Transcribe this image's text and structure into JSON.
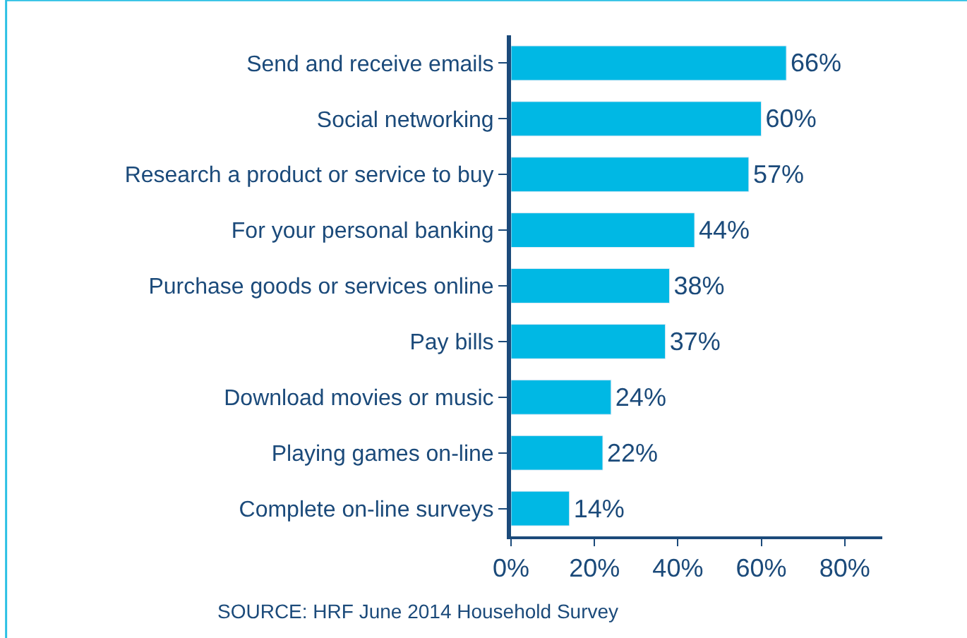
{
  "chart_data": {
    "type": "bar",
    "orientation": "horizontal",
    "categories": [
      "Send and receive emails",
      "Social networking",
      "Research a product or service to buy",
      "For your personal banking",
      "Purchase goods or services online",
      "Pay bills",
      "Download movies or music",
      "Playing games on-line",
      "Complete on-line surveys"
    ],
    "values": [
      66,
      60,
      57,
      44,
      38,
      37,
      24,
      22,
      14
    ],
    "value_labels": [
      "66%",
      "60%",
      "57%",
      "44%",
      "38%",
      "37%",
      "24%",
      "22%",
      "14%"
    ],
    "color": "#00b8e4",
    "xlim": [
      0,
      89
    ],
    "xticks": [
      {
        "value": 0,
        "label": "0%"
      },
      {
        "value": 20,
        "label": "20%"
      },
      {
        "value": 40,
        "label": "40%"
      },
      {
        "value": 60,
        "label": "60%"
      },
      {
        "value": 80,
        "label": "80%"
      }
    ],
    "annotations": [
      "SOURCE: HRF June 2014 Household Survey"
    ]
  }
}
